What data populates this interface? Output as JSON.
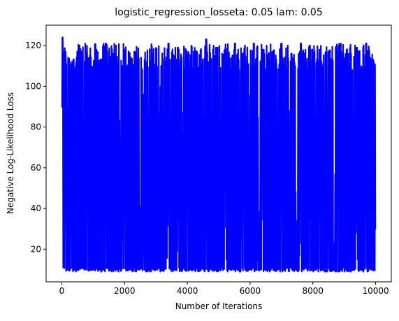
{
  "chart_data": {
    "type": "line",
    "title": "logistic_regression_losseta: 0.05 lam: 0.05",
    "xlabel": "Number of Iterations",
    "ylabel": "Negative Log-Likelihood Loss",
    "xlim": [
      -500,
      10500
    ],
    "ylim": [
      4,
      130
    ],
    "xticks": [
      0,
      2000,
      4000,
      6000,
      8000,
      10000
    ],
    "xtick_labels": [
      "0",
      "2000",
      "4000",
      "6000",
      "8000",
      "10000"
    ],
    "yticks": [
      20,
      40,
      60,
      80,
      100,
      120
    ],
    "ytick_labels": [
      "20",
      "40",
      "60",
      "80",
      "100",
      "120"
    ],
    "grid": false,
    "series": [
      {
        "color": "#0000ff",
        "description_summary": "Loss oscillates heavily across all 10000 iterations between roughly 9 and 124.",
        "x_range": [
          0,
          10000
        ],
        "y_min": 9,
        "y_max": 124,
        "typical_peak_range": [
          108,
          121
        ],
        "typical_trough_range": [
          9,
          11
        ],
        "x": [
          0,
          20,
          60,
          110,
          180,
          280,
          420,
          560,
          700,
          820,
          980,
          1100,
          1260,
          1400,
          1560,
          1700,
          1850,
          2000,
          2180,
          2320,
          2480,
          2600,
          2760,
          2900,
          3060,
          3120,
          3260,
          3400,
          3560,
          3700,
          3860,
          4000,
          4160,
          4300,
          4520,
          4600,
          4780,
          4920,
          5080,
          5200,
          5380,
          5520,
          5680,
          5800,
          5980,
          6120,
          6280,
          6400,
          6580,
          6720,
          6880,
          7000,
          7180,
          7320,
          7480,
          7620,
          7780,
          7900,
          8080,
          8220,
          8380,
          8500,
          8680,
          8800,
          8980,
          9120,
          9280,
          9400,
          9560,
          9700,
          9820,
          9920,
          10000
        ],
        "y": [
          90,
          124,
          12,
          117,
          10,
          110,
          10,
          120,
          11,
          114,
          10,
          118,
          9,
          121,
          10,
          116,
          11,
          118,
          10,
          117,
          10,
          96,
          11,
          116,
          11,
          87,
          10,
          121,
          10,
          119,
          11,
          113,
          10,
          117,
          11,
          123,
          10,
          119,
          11,
          117,
          10,
          121,
          9,
          116,
          10,
          121,
          11,
          118,
          10,
          117,
          10,
          121,
          11,
          116,
          10,
          121,
          11,
          120,
          10,
          118,
          9,
          117,
          10,
          93,
          11,
          116,
          10,
          119,
          10,
          121,
          11,
          113,
          30
        ]
      }
    ]
  }
}
